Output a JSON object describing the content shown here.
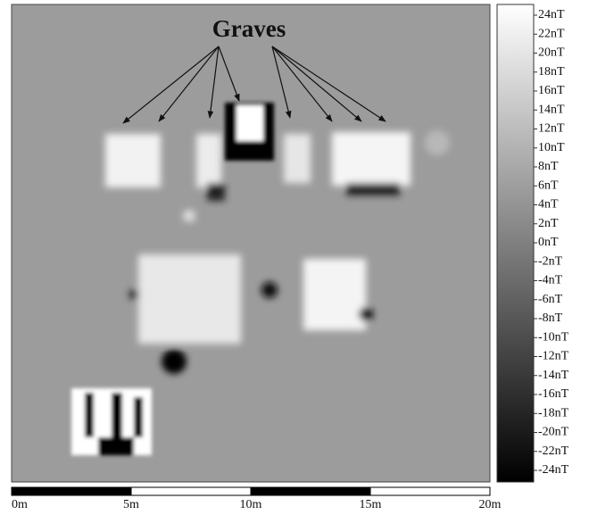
{
  "chart_data": {
    "type": "heatmap",
    "annotation": "Graves",
    "clim": [
      -24,
      24
    ],
    "cticks": [
      {
        "value": 24,
        "label": "24nT"
      },
      {
        "value": 22,
        "label": "22nT"
      },
      {
        "value": 20,
        "label": "20nT"
      },
      {
        "value": 18,
        "label": "18nT"
      },
      {
        "value": 16,
        "label": "16nT"
      },
      {
        "value": 14,
        "label": "14nT"
      },
      {
        "value": 12,
        "label": "12nT"
      },
      {
        "value": 10,
        "label": "10nT"
      },
      {
        "value": 8,
        "label": "8nT"
      },
      {
        "value": 6,
        "label": "6nT"
      },
      {
        "value": 4,
        "label": "4nT"
      },
      {
        "value": 2,
        "label": "2nT"
      },
      {
        "value": 0,
        "label": "0nT"
      },
      {
        "value": -2,
        "label": "-2nT"
      },
      {
        "value": -4,
        "label": "-4nT"
      },
      {
        "value": -6,
        "label": "-6nT"
      },
      {
        "value": -8,
        "label": "-8nT"
      },
      {
        "value": -10,
        "label": "-10nT"
      },
      {
        "value": -12,
        "label": "-12nT"
      },
      {
        "value": -14,
        "label": "-14nT"
      },
      {
        "value": -16,
        "label": "-16nT"
      },
      {
        "value": -18,
        "label": "-18nT"
      },
      {
        "value": -20,
        "label": "-20nT"
      },
      {
        "value": -22,
        "label": "-22nT"
      },
      {
        "value": -24,
        "label": "-24nT"
      }
    ],
    "xlim": [
      0,
      20
    ],
    "xticks": [
      {
        "value": 0,
        "label": "0m"
      },
      {
        "value": 5,
        "label": "5m"
      },
      {
        "value": 10,
        "label": "10m"
      },
      {
        "value": 15,
        "label": "15m"
      },
      {
        "value": 20,
        "label": "20m"
      }
    ]
  }
}
